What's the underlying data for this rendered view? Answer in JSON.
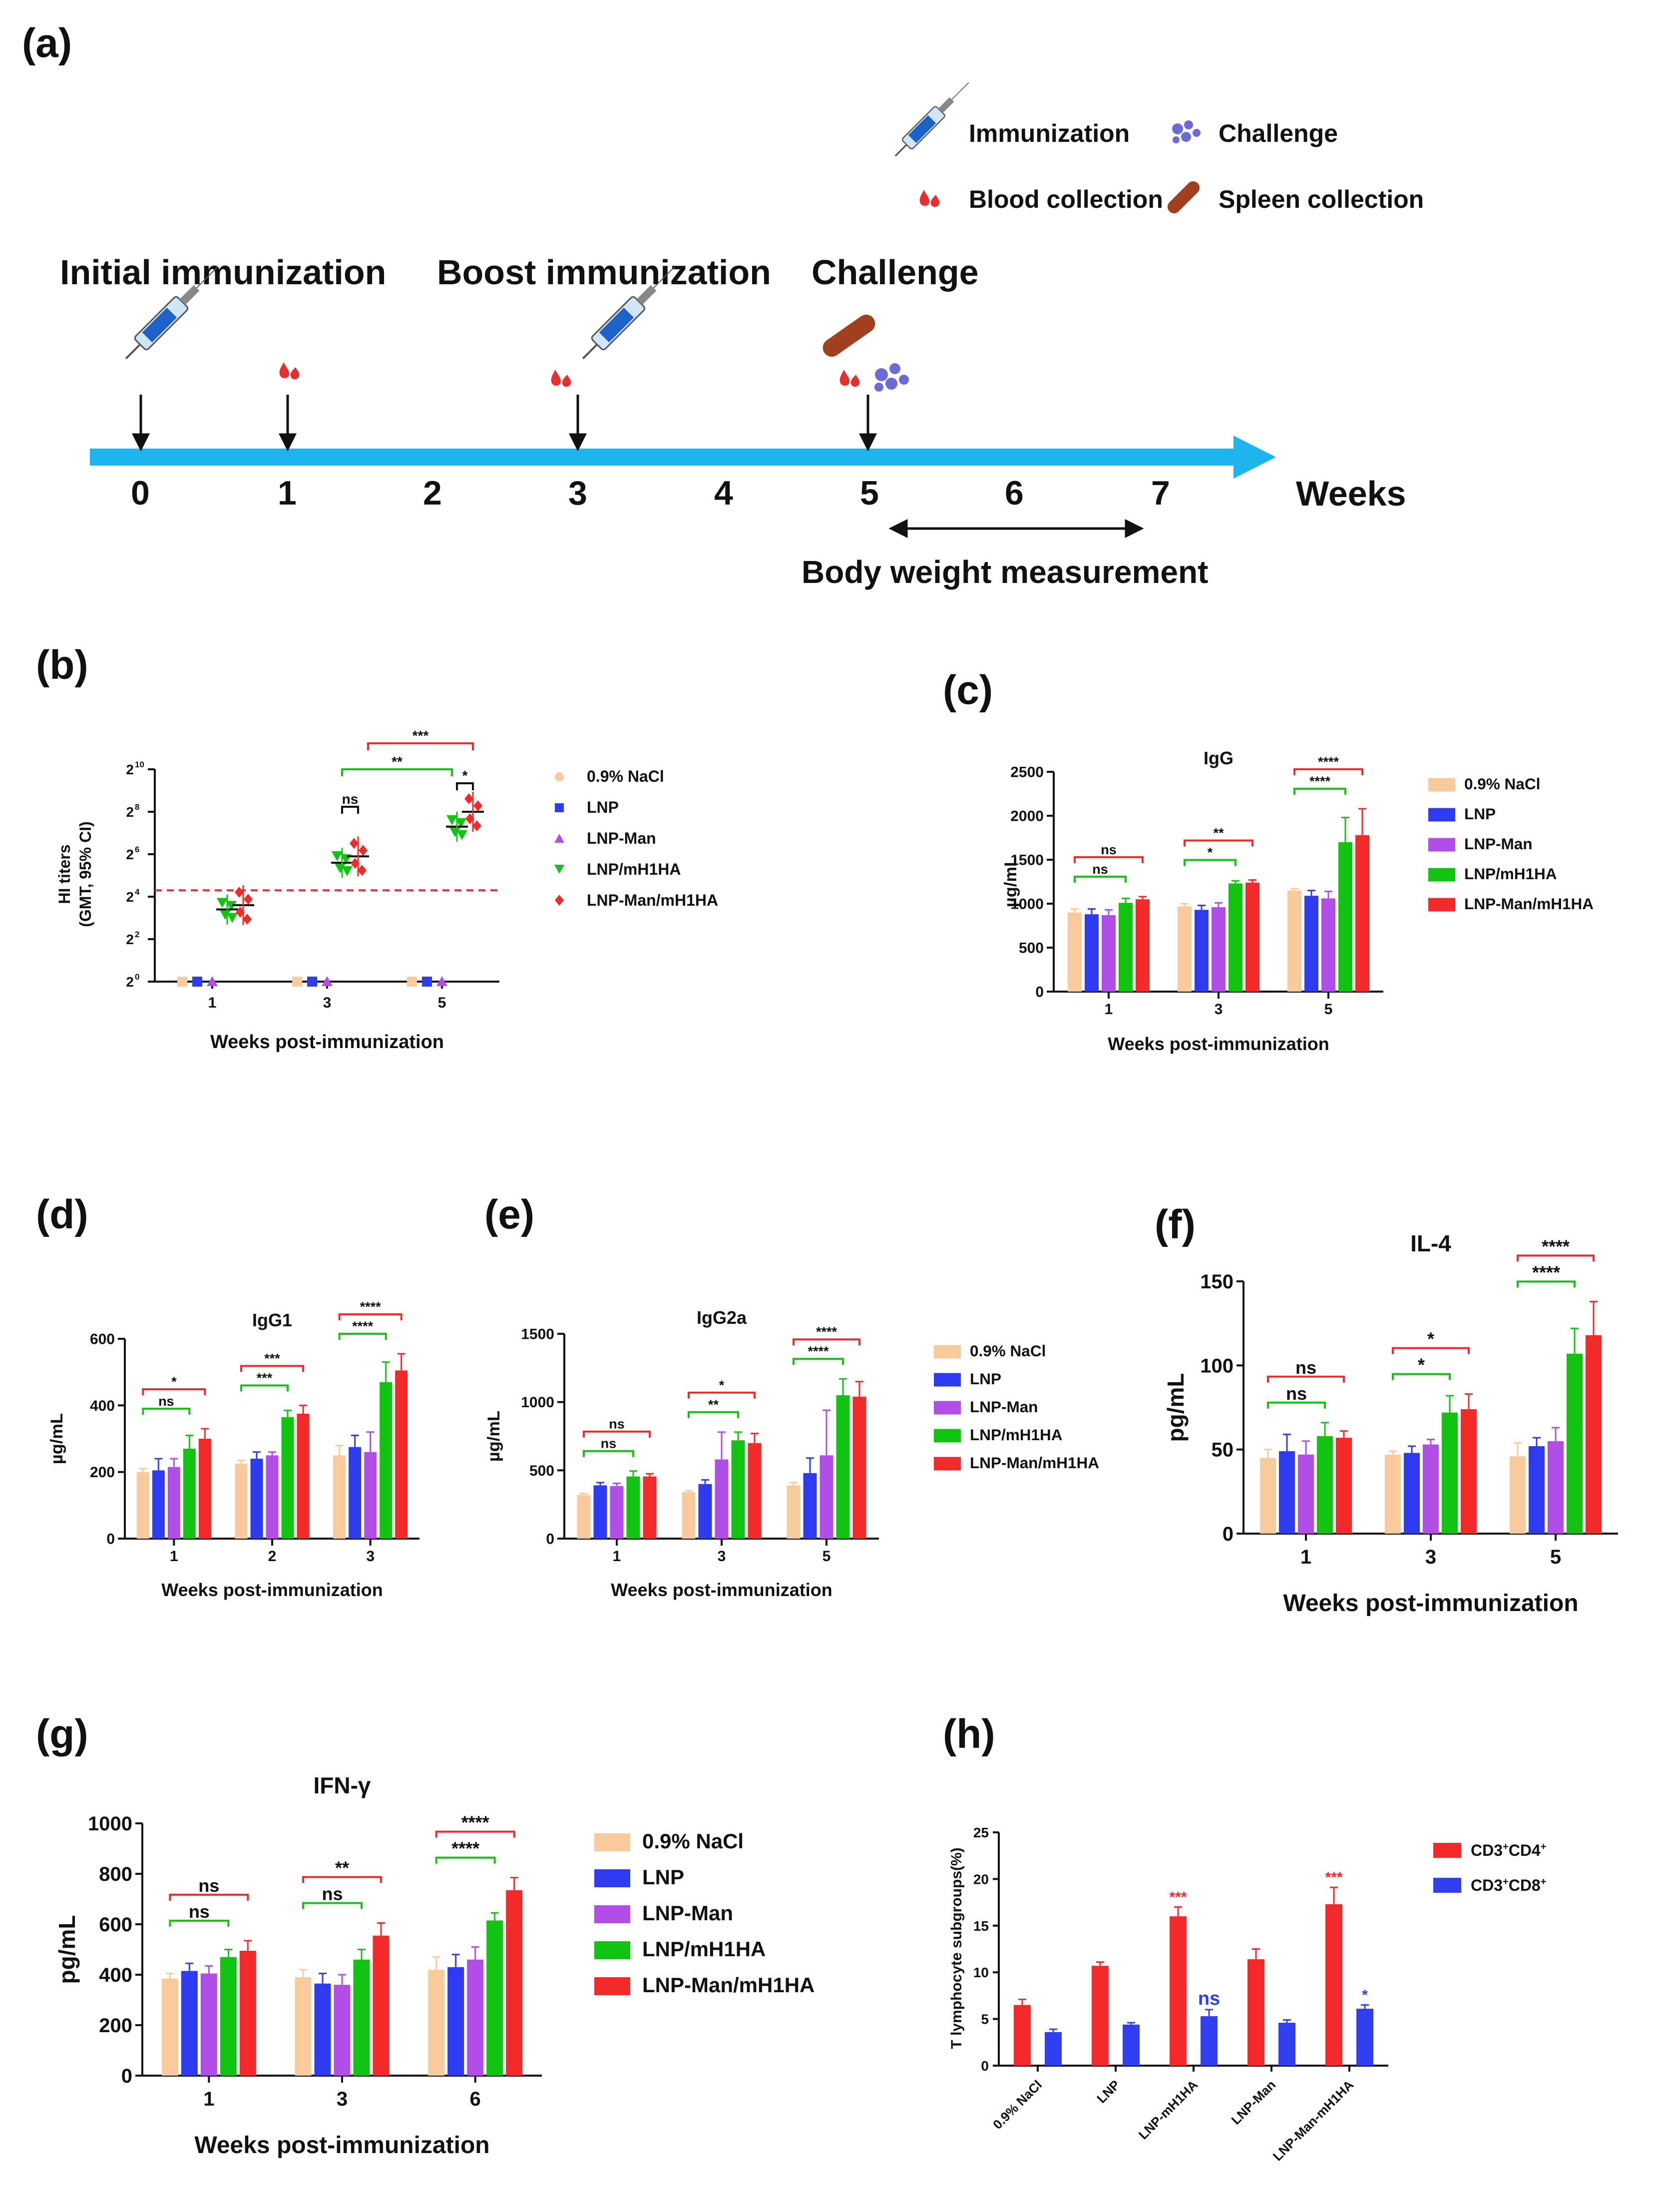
{
  "panel_labels": {
    "a": "(a)",
    "b": "(b)",
    "c": "(c)",
    "d": "(d)",
    "e": "(e)",
    "f": "(f)",
    "g": "(g)",
    "h": "(h)"
  },
  "timeline": {
    "phases": [
      "Initial immunization",
      "Boost immunization",
      "Challenge"
    ],
    "weeks": [
      "0",
      "1",
      "2",
      "3",
      "4",
      "5",
      "6",
      "7"
    ],
    "axis_label": "Weeks",
    "body_weight": "Body weight measurement",
    "legend": {
      "immunization": "Immunization",
      "challenge": "Challenge",
      "blood": "Blood collection",
      "spleen": "Spleen collection"
    },
    "icon_names": [
      "syringe-icon",
      "virus-icon",
      "blood-drop-icon",
      "spleen-icon",
      "arrow-icon"
    ],
    "colors": {
      "arrow": "#1eb4ee",
      "virus": "#6a6ad8",
      "blood": "#e53030",
      "spleen": "#a0401e"
    }
  },
  "colors": {
    "nacl": "#f9cb9c",
    "lnp": "#2f3bf0",
    "lnpman": "#b24ee8",
    "lnpmh1ha": "#12c412",
    "lnpmanmh1ha": "#f42a2a",
    "cd4": "#f42a2a",
    "cd8": "#3040f0"
  },
  "chart_data": [
    {
      "id": "b",
      "type": "scatter",
      "title": "",
      "xlabel": "Weeks post-immunization",
      "ylabel": "HI titers (GMT, 95% CI)",
      "categories": [
        "1",
        "3",
        "5"
      ],
      "y_ticks": [
        "2",
        "2",
        "2",
        "2",
        "2",
        "2"
      ],
      "y_tick_exponents": [
        "0",
        "2",
        "4",
        "6",
        "8",
        "10"
      ],
      "threshold_exp": 4.3,
      "series": [
        {
          "name": "0.9% NaCl",
          "marker": "square",
          "values": [
            0,
            0,
            0
          ]
        },
        {
          "name": "LNP",
          "marker": "square",
          "values": [
            0,
            0,
            0
          ]
        },
        {
          "name": "LNP-Man",
          "marker": "triangle-up",
          "values": [
            0,
            0,
            0
          ]
        },
        {
          "name": "LNP/mH1HA",
          "marker": "triangle-down",
          "values": [
            3.4,
            5.6,
            7.3
          ]
        },
        {
          "name": "LNP-Man/mH1HA",
          "marker": "diamond",
          "values": [
            3.6,
            5.9,
            8.0
          ]
        }
      ],
      "significance": [
        {
          "label": "ns",
          "cat": 1,
          "from": 3,
          "to": 4,
          "color": "#111"
        },
        {
          "label": "**",
          "cat": 1,
          "from": 3,
          "to": "2-4",
          "color": "#12c412"
        },
        {
          "label": "***",
          "cat": 1,
          "from": 4,
          "to": "2-4",
          "color": "#f42a2a"
        },
        {
          "label": "*",
          "cat": 2,
          "from": 3,
          "to": 4,
          "color": "#111"
        }
      ]
    },
    {
      "id": "c",
      "type": "bar",
      "title": "IgG",
      "xlabel": "Weeks post-immunization",
      "ylabel": "µg/mL",
      "categories": [
        "1",
        "3",
        "5"
      ],
      "ylim": [
        0,
        2500
      ],
      "y_ticks": [
        "0",
        "500",
        "1000",
        "1500",
        "2000",
        "2500"
      ],
      "series": [
        {
          "name": "0.9% NaCl",
          "values": [
            900,
            970,
            1150
          ],
          "err": [
            40,
            30,
            20
          ]
        },
        {
          "name": "LNP",
          "values": [
            880,
            930,
            1090
          ],
          "err": [
            60,
            50,
            60
          ]
        },
        {
          "name": "LNP-Man",
          "values": [
            870,
            960,
            1060
          ],
          "err": [
            60,
            50,
            80
          ]
        },
        {
          "name": "LNP/mH1HA",
          "values": [
            1010,
            1230,
            1700
          ],
          "err": [
            50,
            30,
            280
          ]
        },
        {
          "name": "LNP-Man/mH1HA",
          "values": [
            1050,
            1240,
            1780
          ],
          "err": [
            30,
            30,
            300
          ]
        }
      ],
      "significance": [
        {
          "cat": 0,
          "label": "ns",
          "color": "green"
        },
        {
          "cat": 0,
          "label": "ns",
          "color": "red"
        },
        {
          "cat": 1,
          "label": "*",
          "color": "green"
        },
        {
          "cat": 1,
          "label": "**",
          "color": "red"
        },
        {
          "cat": 2,
          "label": "****",
          "color": "green"
        },
        {
          "cat": 2,
          "label": "****",
          "color": "red"
        }
      ]
    },
    {
      "id": "d",
      "type": "bar",
      "title": "IgG1",
      "xlabel": "Weeks post-immunization",
      "ylabel": "µg/mL",
      "categories": [
        "1",
        "2",
        "3"
      ],
      "ylim": [
        0,
        600
      ],
      "y_ticks": [
        "0",
        "200",
        "400",
        "600"
      ],
      "series": [
        {
          "name": "0.9% NaCl",
          "values": [
            200,
            225,
            250
          ],
          "err": [
            10,
            10,
            30
          ]
        },
        {
          "name": "LNP",
          "values": [
            205,
            240,
            275
          ],
          "err": [
            35,
            20,
            35
          ]
        },
        {
          "name": "LNP-Man",
          "values": [
            215,
            250,
            260
          ],
          "err": [
            25,
            10,
            60
          ]
        },
        {
          "name": "LNP/mH1HA",
          "values": [
            270,
            365,
            470
          ],
          "err": [
            40,
            20,
            60
          ]
        },
        {
          "name": "LNP-Man/mH1HA",
          "values": [
            300,
            375,
            505
          ],
          "err": [
            30,
            25,
            50
          ]
        }
      ],
      "significance": [
        {
          "cat": 0,
          "label": "ns",
          "color": "green"
        },
        {
          "cat": 0,
          "label": "*",
          "color": "red"
        },
        {
          "cat": 1,
          "label": "***",
          "color": "green"
        },
        {
          "cat": 1,
          "label": "***",
          "color": "red"
        },
        {
          "cat": 2,
          "label": "****",
          "color": "green"
        },
        {
          "cat": 2,
          "label": "****",
          "color": "red"
        }
      ]
    },
    {
      "id": "e",
      "type": "bar",
      "title": "IgG2a",
      "xlabel": "Weeks post-immunization",
      "ylabel": "µg/mL",
      "categories": [
        "1",
        "3",
        "5"
      ],
      "ylim": [
        0,
        1500
      ],
      "y_ticks": [
        "0",
        "500",
        "1000",
        "1500"
      ],
      "series": [
        {
          "name": "0.9% NaCl",
          "values": [
            320,
            340,
            390
          ],
          "err": [
            10,
            10,
            20
          ]
        },
        {
          "name": "LNP",
          "values": [
            390,
            400,
            480
          ],
          "err": [
            20,
            30,
            110
          ]
        },
        {
          "name": "LNP-Man",
          "values": [
            385,
            580,
            610
          ],
          "err": [
            20,
            200,
            330
          ]
        },
        {
          "name": "LNP/mH1HA",
          "values": [
            455,
            720,
            1050
          ],
          "err": [
            40,
            60,
            120
          ]
        },
        {
          "name": "LNP-Man/mH1HA",
          "values": [
            455,
            700,
            1040
          ],
          "err": [
            20,
            70,
            110
          ]
        }
      ],
      "significance": [
        {
          "cat": 0,
          "label": "ns",
          "color": "green"
        },
        {
          "cat": 0,
          "label": "ns",
          "color": "red"
        },
        {
          "cat": 1,
          "label": "**",
          "color": "green"
        },
        {
          "cat": 1,
          "label": "*",
          "color": "red"
        },
        {
          "cat": 2,
          "label": "****",
          "color": "green"
        },
        {
          "cat": 2,
          "label": "****",
          "color": "red"
        }
      ]
    },
    {
      "id": "f",
      "type": "bar",
      "title": "IL-4",
      "xlabel": "Weeks post-immunization",
      "ylabel": "pg/mL",
      "categories": [
        "1",
        "3",
        "5"
      ],
      "ylim": [
        0,
        150
      ],
      "y_ticks": [
        "0",
        "50",
        "100",
        "150"
      ],
      "series": [
        {
          "name": "0.9% NaCl",
          "values": [
            45,
            47,
            46
          ],
          "err": [
            5,
            2,
            8
          ]
        },
        {
          "name": "LNP",
          "values": [
            49,
            48,
            52
          ],
          "err": [
            10,
            4,
            5
          ]
        },
        {
          "name": "LNP-Man",
          "values": [
            47,
            53,
            55
          ],
          "err": [
            8,
            3,
            8
          ]
        },
        {
          "name": "LNP/mH1HA",
          "values": [
            58,
            72,
            107
          ],
          "err": [
            8,
            10,
            15
          ]
        },
        {
          "name": "LNP-Man/mH1HA",
          "values": [
            57,
            74,
            118
          ],
          "err": [
            4,
            9,
            20
          ]
        }
      ],
      "significance": [
        {
          "cat": 0,
          "label": "ns",
          "color": "green"
        },
        {
          "cat": 0,
          "label": "ns",
          "color": "red"
        },
        {
          "cat": 1,
          "label": "*",
          "color": "green"
        },
        {
          "cat": 1,
          "label": "*",
          "color": "red"
        },
        {
          "cat": 2,
          "label": "****",
          "color": "green"
        },
        {
          "cat": 2,
          "label": "****",
          "color": "red"
        }
      ]
    },
    {
      "id": "g",
      "type": "bar",
      "title": "IFN-γ",
      "xlabel": "Weeks post-immunization",
      "ylabel": "pg/mL",
      "categories": [
        "1",
        "3",
        "6"
      ],
      "ylim": [
        0,
        1000
      ],
      "y_ticks": [
        "0",
        "200",
        "400",
        "600",
        "800",
        "1000"
      ],
      "series": [
        {
          "name": "0.9% NaCl",
          "values": [
            385,
            390,
            420
          ],
          "err": [
            20,
            30,
            50
          ]
        },
        {
          "name": "LNP",
          "values": [
            415,
            365,
            430
          ],
          "err": [
            30,
            40,
            50
          ]
        },
        {
          "name": "LNP-Man",
          "values": [
            405,
            360,
            460
          ],
          "err": [
            30,
            40,
            50
          ]
        },
        {
          "name": "LNP/mH1HA",
          "values": [
            470,
            460,
            615
          ],
          "err": [
            30,
            40,
            30
          ]
        },
        {
          "name": "LNP-Man/mH1HA",
          "values": [
            495,
            555,
            735
          ],
          "err": [
            40,
            50,
            50
          ]
        }
      ],
      "significance": [
        {
          "cat": 0,
          "label": "ns",
          "color": "green"
        },
        {
          "cat": 0,
          "label": "ns",
          "color": "red"
        },
        {
          "cat": 1,
          "label": "ns",
          "color": "green"
        },
        {
          "cat": 1,
          "label": "**",
          "color": "red"
        },
        {
          "cat": 2,
          "label": "****",
          "color": "green"
        },
        {
          "cat": 2,
          "label": "****",
          "color": "red"
        }
      ]
    },
    {
      "id": "h",
      "type": "bar",
      "title": "",
      "xlabel": "",
      "ylabel": "T lymphocyte subgroups(%)",
      "categories": [
        "0.9% NaCl",
        "LNP",
        "LNP-mH1HA",
        "LNP-Man",
        "LNP-Man-mH1HA"
      ],
      "ylim": [
        0,
        25
      ],
      "y_ticks": [
        "0",
        "5",
        "10",
        "15",
        "20",
        "25"
      ],
      "series": [
        {
          "name": "CD3+CD4+",
          "label_main": "CD3",
          "sup1": "+",
          "mid": "CD4",
          "sup2": "+",
          "values": [
            6.5,
            10.7,
            16.0,
            11.4,
            17.3
          ],
          "err": [
            0.6,
            0.4,
            1.0,
            1.1,
            1.8
          ]
        },
        {
          "name": "CD3+CD8+",
          "label_main": "CD3",
          "sup1": "+",
          "mid": "CD8",
          "sup2": "+",
          "values": [
            3.6,
            4.4,
            5.3,
            4.6,
            6.1
          ],
          "err": [
            0.3,
            0.2,
            0.7,
            0.3,
            0.4
          ]
        }
      ],
      "annotations": [
        {
          "cat": 2,
          "series": 0,
          "label": "***"
        },
        {
          "cat": 4,
          "series": 0,
          "label": "***"
        },
        {
          "cat": 2,
          "series": 1,
          "label": "ns"
        },
        {
          "cat": 4,
          "series": 1,
          "label": "*"
        }
      ]
    }
  ]
}
